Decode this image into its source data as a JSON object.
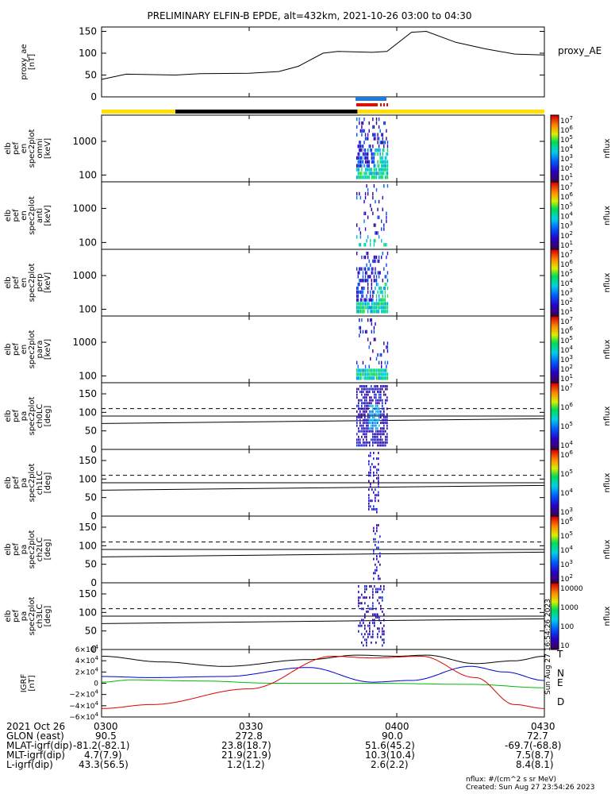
{
  "chart_data": {
    "title": "PRELIMINARY ELFIN-B EPDE, alt=432km, 2021-10-26 03:00 to 04:30",
    "type": "line",
    "x_unit": "UT",
    "xlim": [
      "03:00",
      "04:30"
    ],
    "panels": [
      {
        "ylabel": "proxy_ae\n[nT]",
        "yticks": [
          "150",
          "100",
          "50",
          "0"
        ],
        "ylim": [
          0,
          160
        ],
        "legend": "proxy_AE",
        "series": [
          {
            "x": [
              "03:00",
              "03:05",
              "03:15",
              "03:20",
              "03:30",
              "03:36",
              "03:40",
              "03:45",
              "03:48",
              "03:55",
              "03:58",
              "04:03",
              "04:06",
              "04:12",
              "04:18",
              "04:24",
              "04:30"
            ],
            "values": [
              40,
              52,
              50,
              53,
              54,
              58,
              70,
              100,
              104,
              102,
              104,
              148,
              150,
              125,
              110,
              98,
              96
            ]
          }
        ]
      },
      {
        "ylabel": "elb\npef\nen\nspec2plot\nomni\n[keV]",
        "yticks": [
          "1000",
          "100"
        ],
        "ylim": [
          63,
          6000
        ],
        "yscale": "log",
        "cbar_ticks": [
          "10^7",
          "10^6",
          "10^5",
          "10^4",
          "10^3",
          "10^2",
          "10^1"
        ],
        "cbar_label": "nflux"
      },
      {
        "ylabel": "elb\npef\nen\nspec2plot\nanti\n[keV]",
        "yticks": [
          "1000",
          "100"
        ],
        "ylim": [
          63,
          6000
        ],
        "yscale": "log",
        "cbar_ticks": [
          "10^7",
          "10^6",
          "10^5",
          "10^4",
          "10^3",
          "10^2",
          "10^1"
        ],
        "cbar_label": "nflux"
      },
      {
        "ylabel": "elb\npef\nen\nspec2plot\nperp\n[keV]",
        "yticks": [
          "1000",
          "100"
        ],
        "ylim": [
          63,
          6000
        ],
        "yscale": "log",
        "cbar_ticks": [
          "10^7",
          "10^6",
          "10^5",
          "10^4",
          "10^3",
          "10^2",
          "10^1"
        ],
        "cbar_label": "nflux"
      },
      {
        "ylabel": "elb\npef\nen\nspec2plot\npara\n[keV]",
        "yticks": [
          "1000",
          "100"
        ],
        "ylim": [
          63,
          6000
        ],
        "yscale": "log",
        "cbar_ticks": [
          "10^7",
          "10^6",
          "10^5",
          "10^4",
          "10^3",
          "10^2",
          "10^1"
        ],
        "cbar_label": "nflux"
      },
      {
        "ylabel": "elb\npef\npa\nspec2plot\nch0LC\n[deg]",
        "yticks": [
          "150",
          "100",
          "50",
          "0"
        ],
        "ylim": [
          0,
          180
        ],
        "cbar_ticks": [
          "10^7",
          "10^6",
          "10^5",
          "10^4"
        ],
        "cbar_label": "nflux"
      },
      {
        "ylabel": "elb\npef\npa\nspec2plot\nch1LC\n[deg]",
        "yticks": [
          "150",
          "100",
          "50",
          "0"
        ],
        "ylim": [
          0,
          180
        ],
        "cbar_ticks": [
          "10^6",
          "10^5",
          "10^4",
          "10^3"
        ],
        "cbar_label": "nflux"
      },
      {
        "ylabel": "elb\npef\npa\nspec2plot\nch2LC\n[deg]",
        "yticks": [
          "150",
          "100",
          "50",
          "0"
        ],
        "ylim": [
          0,
          180
        ],
        "cbar_ticks": [
          "10^6",
          "10^5",
          "10^4",
          "10^3",
          "10^2"
        ],
        "cbar_label": "nflux"
      },
      {
        "ylabel": "elb\npef\npa\nspec2plot\nch3LC\n[deg]",
        "yticks": [
          "150",
          "100",
          "50",
          "0"
        ],
        "ylim": [
          0,
          180
        ],
        "cbar_ticks": [
          "10000",
          "1000",
          "100",
          "10"
        ],
        "cbar_label": "nflux"
      },
      {
        "ylabel": "IGRF\n[nT]",
        "yticks": [
          "6×10^4",
          "4×10^4",
          "2×10^4",
          "0",
          "−2×10^4",
          "−4×10^4",
          "−6×10^4"
        ],
        "ylim": [
          -60000,
          60000
        ],
        "legend": [
          "T",
          "N",
          "E",
          "D"
        ],
        "legend_colors": [
          "#000000",
          "#0000cc",
          "#00bb00",
          "#dd0000"
        ]
      }
    ],
    "pa_lines_deg": [
      110,
      90,
      70
    ]
  },
  "colors": {
    "status_yellow": "#ffe000",
    "status_black": "#000000",
    "marker_blue": "#1e78e0",
    "marker_red": "#e01000"
  },
  "time_labels": [
    "0300",
    "0330",
    "0400",
    "0430"
  ],
  "ephemeris": {
    "date": "2021 Oct 26",
    "rows": [
      {
        "label": "GLON (east)",
        "values": [
          "90.5",
          "272.8",
          "90.0",
          "72.7"
        ]
      },
      {
        "label": "MLAT-igrf(dip)",
        "values": [
          "-81.2(-82.1)",
          "23.8(18.7)",
          "51.6(45.2)",
          "-69.7(-68.8)"
        ]
      },
      {
        "label": "MLT-igrf(dip)",
        "values": [
          "4.7(7.9)",
          "21.9(21.9)",
          "10.3(10.4)",
          "7.5(8.7)"
        ]
      },
      {
        "label": "L-igrf(dip)",
        "values": [
          "43.3(56.5)",
          "1.2(1.2)",
          "2.6(2.2)",
          "8.4(8.1)"
        ]
      }
    ]
  },
  "side_stamp": "Sun Aug 27 16:54:26 2023",
  "footer": {
    "units": "nflux: #/(cm^2 s sr MeV)",
    "created": "Created: Sun Aug 27 23:54:26 2023"
  }
}
